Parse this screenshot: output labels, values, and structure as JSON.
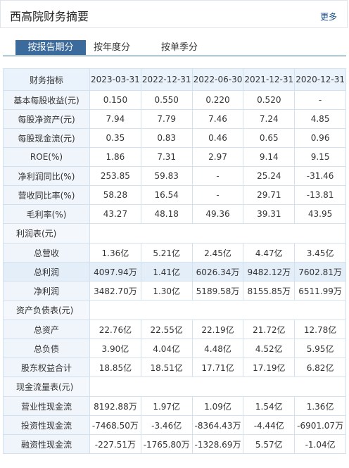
{
  "header": {
    "title": "西高院财务摘要",
    "more": "更多"
  },
  "tabs": [
    "按报告期分",
    "按年度分",
    "按单季分"
  ],
  "table": {
    "columns": [
      "财务指标",
      "2023-03-31",
      "2022-12-31",
      "2022-06-30",
      "2021-12-31",
      "2020-12-31"
    ],
    "rows": [
      [
        "基本每股收益(元)",
        "0.150",
        "0.550",
        "0.220",
        "0.520",
        "-"
      ],
      [
        "每股净资产(元)",
        "7.94",
        "7.79",
        "7.46",
        "7.24",
        "4.85"
      ],
      [
        "每股现金流(元)",
        "0.35",
        "0.83",
        "0.46",
        "0.65",
        "0.96"
      ],
      [
        "ROE(%)",
        "1.86",
        "7.31",
        "2.97",
        "9.14",
        "9.15"
      ],
      [
        "净利润同比(%)",
        "253.85",
        "59.83",
        "-",
        "25.24",
        "-31.46"
      ],
      [
        "营收同比率(%)",
        "58.28",
        "16.54",
        "-",
        "29.71",
        "-13.81"
      ],
      [
        "毛利率(%)",
        "43.27",
        "48.18",
        "49.36",
        "39.31",
        "43.95"
      ],
      [
        "利润表(元)"
      ],
      [
        "总营收",
        "1.36亿",
        "5.21亿",
        "2.45亿",
        "4.47亿",
        "3.45亿"
      ],
      [
        "总利润",
        "4097.94万",
        "1.41亿",
        "6026.34万",
        "9482.12万",
        "7602.81万"
      ],
      [
        "净利润",
        "3482.70万",
        "1.30亿",
        "5189.58万",
        "8155.85万",
        "6511.99万"
      ],
      [
        "资产负债表(元)"
      ],
      [
        "总资产",
        "22.76亿",
        "22.55亿",
        "22.19亿",
        "21.72亿",
        "12.78亿"
      ],
      [
        "总负债",
        "3.90亿",
        "4.04亿",
        "4.48亿",
        "4.52亿",
        "5.95亿"
      ],
      [
        "股东权益合计",
        "18.85亿",
        "18.51亿",
        "17.71亿",
        "17.19亿",
        "6.82亿"
      ],
      [
        "现金流量表(元)"
      ],
      [
        "营业性现金流",
        "8192.88万",
        "1.97亿",
        "1.09亿",
        "1.54亿",
        "1.36亿"
      ],
      [
        "投资性现金流",
        "-7468.50万",
        "-3.46亿",
        "-8364.43万",
        "-4.44亿",
        "-6901.07万"
      ],
      [
        "融资性现金流",
        "-227.51万",
        "-1765.80万",
        "-1328.69万",
        "5.57亿",
        "-1.04亿"
      ]
    ]
  }
}
